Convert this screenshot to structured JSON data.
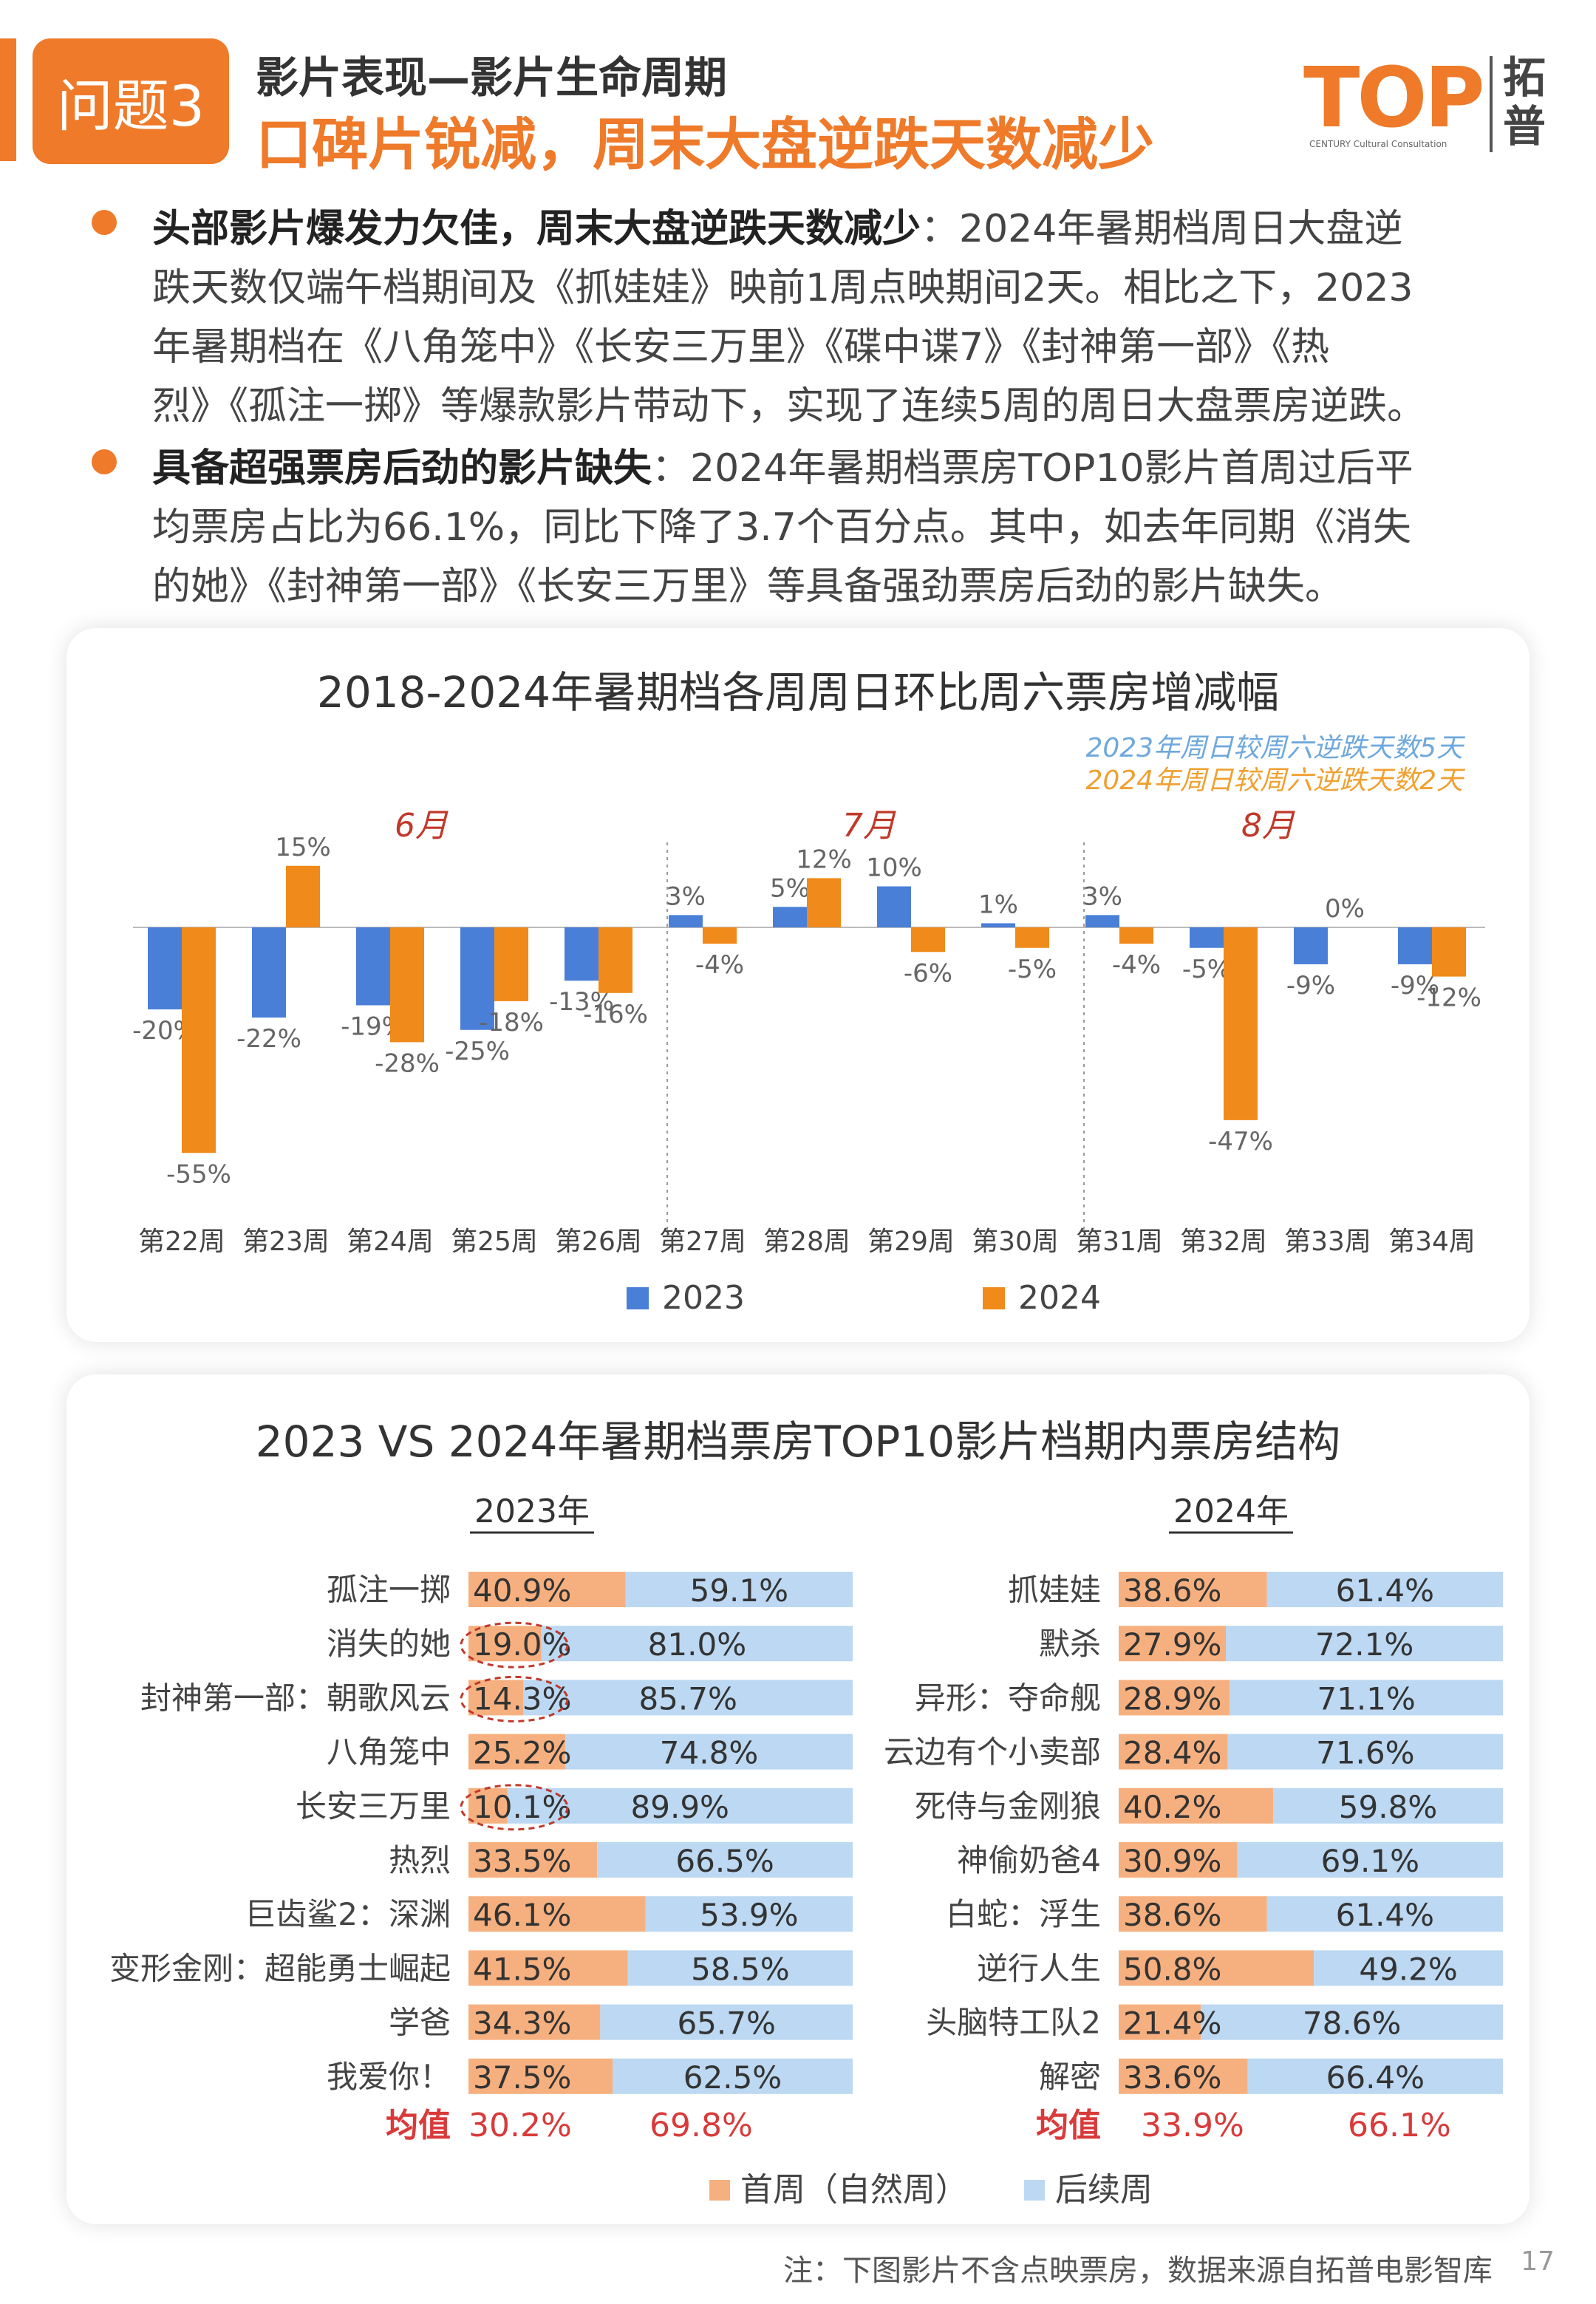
{
  "header": {
    "badge": "问题3",
    "subtitle": "影片表现—影片生命周期",
    "title": "口碑片锐减，周末大盘逆跌天数减少",
    "logo_text": "TOP",
    "logo_sub": "CENTURY Cultural Consultation",
    "logo_cn_1": "拓",
    "logo_cn_2": "普"
  },
  "bullets": [
    {
      "lead": "头部影片爆发力欠佳，周末大盘逆跌天数减少",
      "lines": [
        "：2024年暑期档周日大盘逆",
        "跌天数仅端午档期间及《抓娃娃》映前1周点映期间2天。相比之下，2023",
        "年暑期档在《八角笼中》《长安三万里》《碟中谍7》《封神第一部》《热",
        "烈》《孤注一掷》等爆款影片带动下，实现了连续5周的周日大盘票房逆跌。"
      ]
    },
    {
      "lead": "具备超强票房后劲的影片缺失",
      "lines": [
        "：2024年暑期档票房TOP10影片首周过后平",
        "均票房占比为66.1%，同比下降了3.7个百分点。其中，如去年同期《消失",
        "的她》《封神第一部》《长安三万里》等具备强劲票房后劲的影片缺失。"
      ]
    }
  ],
  "chart_data": [
    {
      "type": "bar",
      "title": "2018-2024年暑期档各周周日环比周六票房增减幅",
      "categories": [
        "第22周",
        "第23周",
        "第24周",
        "第25周",
        "第26周",
        "第27周",
        "第28周",
        "第29周",
        "第30周",
        "第31周",
        "第32周",
        "第33周",
        "第34周"
      ],
      "series": [
        {
          "name": "2023",
          "values": [
            -20,
            -22,
            -19,
            -25,
            -13,
            3,
            5,
            10,
            1,
            3,
            -5,
            -9,
            -9
          ],
          "color": "#4a7fd8"
        },
        {
          "name": "2024",
          "values": [
            -55,
            15,
            -28,
            -18,
            -16,
            -4,
            12,
            -6,
            -5,
            -4,
            -47,
            0,
            -12
          ],
          "color": "#f08a1a"
        }
      ],
      "value_labels": {
        "2023": [
          "-20%",
          "-22%",
          "-19%",
          "-25%",
          "-13%",
          "3%",
          "5%",
          "10%",
          "1%",
          "3%",
          "-5%",
          "-9%",
          "-9%"
        ],
        "2024": [
          "-55%",
          "15%",
          "-28%",
          "-18%",
          "-16%",
          "-4%",
          "12%",
          "-6%",
          "-5%",
          "-4%",
          "-47%",
          "0%",
          "-12%"
        ]
      },
      "months": [
        "6月",
        "7月",
        "8月"
      ],
      "annotations": [
        "2023年周日较周六逆跌天数5天",
        "2024年周日较周六逆跌天数2天"
      ],
      "legend": [
        "2023",
        "2024"
      ]
    },
    {
      "type": "bar",
      "stacked": true,
      "title": "2023 VS 2024年暑期档票房TOP10影片档期内票房结构",
      "panels": [
        {
          "year": "2023年",
          "films": [
            "孤注一掷",
            "消失的她",
            "封神第一部：朝歌风云",
            "八角笼中",
            "长安三万里",
            "热烈",
            "巨齿鲨2：深渊",
            "变形金刚：超能勇士崛起",
            "学爸",
            "我爱你！"
          ],
          "first_week": [
            40.9,
            19.0,
            14.3,
            25.2,
            10.1,
            33.5,
            46.1,
            41.5,
            34.3,
            37.5
          ],
          "later": [
            59.1,
            81.0,
            85.7,
            74.8,
            89.9,
            66.5,
            53.9,
            58.5,
            65.7,
            62.5
          ],
          "first_labels": [
            "40.9%",
            "19.0%",
            "14.3%",
            "25.2%",
            "10.1%",
            "33.5%",
            "46.1%",
            "41.5%",
            "34.3%",
            "37.5%"
          ],
          "later_labels": [
            "59.1%",
            "81.0%",
            "85.7%",
            "74.8%",
            "89.9%",
            "66.5%",
            "53.9%",
            "58.5%",
            "65.7%",
            "62.5%"
          ],
          "circled": [
            1,
            2,
            4
          ],
          "mean_label": "均值",
          "mean_first": "30.2%",
          "mean_later": "69.8%"
        },
        {
          "year": "2024年",
          "films": [
            "抓娃娃",
            "默杀",
            "异形：夺命舰",
            "云边有个小卖部",
            "死侍与金刚狼",
            "神偷奶爸4",
            "白蛇：浮生",
            "逆行人生",
            "头脑特工队2",
            "解密"
          ],
          "first_week": [
            38.6,
            27.9,
            28.9,
            28.4,
            40.2,
            30.9,
            38.6,
            50.8,
            21.4,
            33.6
          ],
          "later": [
            61.4,
            72.1,
            71.1,
            71.6,
            59.8,
            69.1,
            61.4,
            49.2,
            78.6,
            66.4
          ],
          "first_labels": [
            "38.6%",
            "27.9%",
            "28.9%",
            "28.4%",
            "40.2%",
            "30.9%",
            "38.6%",
            "50.8%",
            "21.4%",
            "33.6%"
          ],
          "later_labels": [
            "61.4%",
            "72.1%",
            "71.1%",
            "71.6%",
            "59.8%",
            "69.1%",
            "61.4%",
            "49.2%",
            "78.6%",
            "66.4%"
          ],
          "circled": [],
          "mean_label": "均值",
          "mean_first": "33.9%",
          "mean_later": "66.1%"
        }
      ],
      "legend": [
        "首周（自然周）",
        "后续周"
      ],
      "colors": {
        "first": "#f6b07f",
        "later": "#bcd8f2",
        "mean": "#d93a3a"
      }
    }
  ],
  "footer": {
    "note": "注：下图影片不含点映票房，数据来源自拓普电影智库",
    "page": "17"
  }
}
